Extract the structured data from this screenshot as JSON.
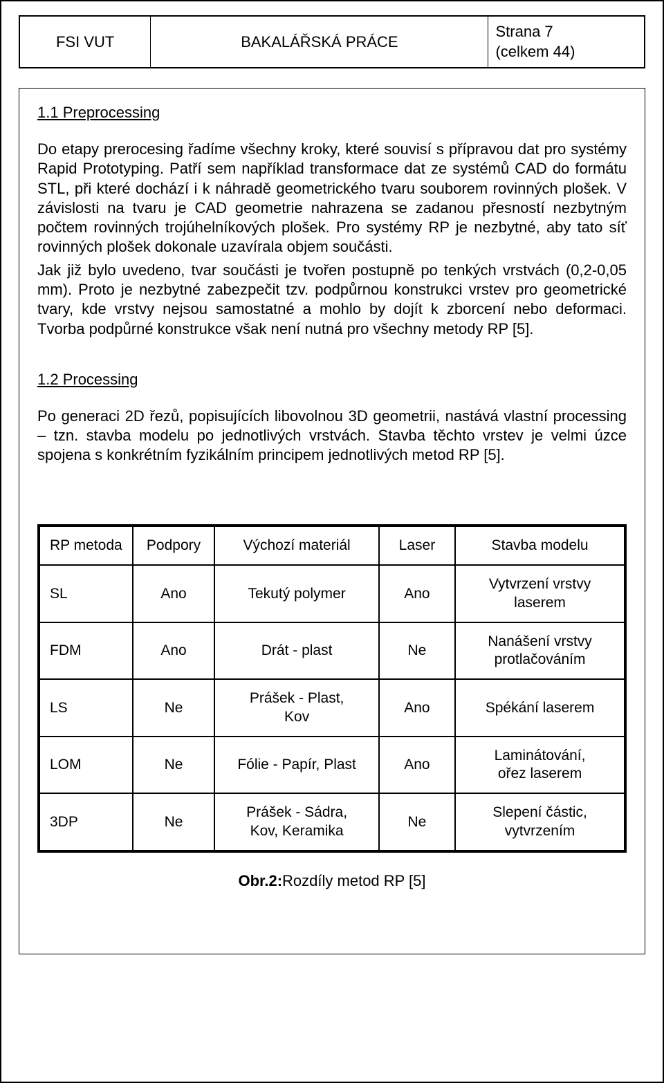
{
  "header": {
    "left": "FSI VUT",
    "center": "BAKALÁŘSKÁ PRÁCE",
    "right_line1": "Strana 7",
    "right_line2": "(celkem 44)"
  },
  "section1": {
    "title": "1.1 Preprocessing",
    "p1": "Do etapy prerocesing řadíme všechny kroky, které souvisí s přípravou dat pro systémy Rapid Prototyping. Patří sem například transformace dat ze systémů CAD do formátu STL, při které dochází i k náhradě geometrického tvaru souborem rovinných plošek. V závislosti na tvaru je CAD geometrie nahrazena se zadanou přesností nezbytným počtem rovinných trojúhelníkových plošek. Pro systémy RP je nezbytné, aby tato síť rovinných plošek dokonale uzavírala objem součásti.",
    "p2": "Jak již bylo uvedeno, tvar součásti je tvořen postupně po tenkých vrstvách (0,2-0,05 mm). Proto je nezbytné zabezpečit tzv. podpůrnou konstrukci vrstev pro geometrické tvary, kde vrstvy nejsou samostatné a mohlo by dojít k zborcení nebo deformaci. Tvorba podpůrné konstrukce však není nutná pro všechny metody RP [5]."
  },
  "section2": {
    "title": "1.2 Processing",
    "p1": "Po generaci 2D řezů, popisujících libovolnou 3D geometrii, nastává vlastní processing – tzn. stavba modelu po jednotlivých vrstvách. Stavba těchto vrstev je velmi úzce spojena s konkrétním fyzikálním principem jednotlivých metod RP [5]."
  },
  "table": {
    "type": "table",
    "columns": [
      "RP metoda",
      "Podpory",
      "Výchozí materiál",
      "Laser",
      "Stavba modelu"
    ],
    "col_align": [
      "left",
      "center",
      "center",
      "center",
      "center"
    ],
    "border_color": "#000000",
    "outer_border_width": 4,
    "inner_border_width": 2,
    "background_color": "#ffffff",
    "font_size": 21,
    "rows": [
      [
        "SL",
        "Ano",
        "Tekutý polymer",
        "Ano",
        "Vytvrzení vrstvy\nlaserem"
      ],
      [
        "FDM",
        "Ano",
        "Drát - plast",
        "Ne",
        "Nanášení vrstvy\nprotlačováním"
      ],
      [
        "LS",
        "Ne",
        "Prášek - Plast,\nKov",
        "Ano",
        "Spékání laserem"
      ],
      [
        "LOM",
        "Ne",
        "Fólie - Papír, Plast",
        "Ano",
        "Laminátování,\nořez laserem"
      ],
      [
        "3DP",
        "Ne",
        "Prášek - Sádra,\nKov, Keramika",
        "Ne",
        "Slepení částic,\nvytvrzením"
      ]
    ]
  },
  "caption": {
    "bold": "Obr.2:",
    "rest": "Rozdíly metod RP [5]"
  }
}
